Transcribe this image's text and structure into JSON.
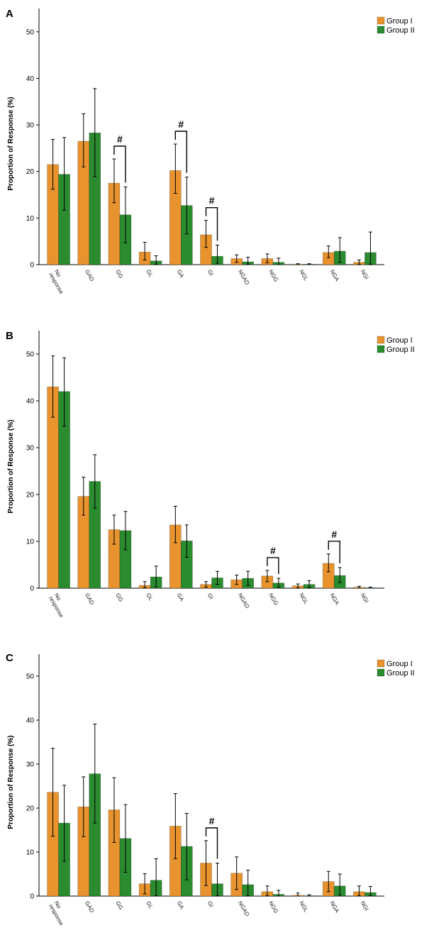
{
  "colors": {
    "group1": "#E8932E",
    "group2": "#2A8B2F",
    "axis": "#000000"
  },
  "chart_data": [
    {
      "panel": "A",
      "type": "bar",
      "ylabel": "Proportion of Response (%)",
      "ylim": [
        0,
        55
      ],
      "yticks": [
        "0",
        "10",
        "20",
        "30",
        "40",
        "50"
      ],
      "categories": [
        "No response",
        "GAD",
        "GG",
        "GL",
        "GA",
        "GI",
        "NGAD",
        "NGG",
        "NGL",
        "NGA",
        "NGI"
      ],
      "category_lines": [
        [
          "No",
          "response"
        ],
        [
          "GAD"
        ],
        [
          "GG"
        ],
        [
          "GL"
        ],
        [
          "GA"
        ],
        [
          "GI"
        ],
        [
          "NGAD"
        ],
        [
          "NGG"
        ],
        [
          "NGL"
        ],
        [
          "NGA"
        ],
        [
          "NGI"
        ]
      ],
      "legend": [
        "Group I",
        "Group II"
      ],
      "series": [
        {
          "name": "Group I",
          "values": [
            21.5,
            26.5,
            17.5,
            2.7,
            20.2,
            6.4,
            1.3,
            1.3,
            0.1,
            2.6,
            0.5
          ],
          "err_low": [
            16.2,
            21.0,
            13.3,
            1.0,
            15.3,
            3.7,
            0.5,
            0.4,
            0.0,
            1.5,
            0.1
          ],
          "err_high": [
            26.9,
            32.4,
            22.7,
            4.8,
            25.9,
            9.5,
            2.1,
            2.3,
            0.2,
            4.0,
            1.0
          ]
        },
        {
          "name": "Group II",
          "values": [
            19.4,
            28.3,
            10.7,
            0.8,
            12.7,
            1.8,
            0.6,
            0.5,
            0.1,
            2.9,
            2.6
          ],
          "err_low": [
            11.7,
            18.9,
            4.7,
            0.1,
            6.6,
            0.3,
            0.1,
            0.0,
            0.0,
            0.5,
            0.1
          ],
          "err_high": [
            27.3,
            37.8,
            16.7,
            1.9,
            18.8,
            4.2,
            1.6,
            1.4,
            0.2,
            5.8,
            7.0
          ]
        }
      ],
      "annotations": [
        {
          "label": "#",
          "category_index": 2
        },
        {
          "label": "#",
          "category_index": 4
        },
        {
          "label": "#",
          "category_index": 5
        }
      ]
    },
    {
      "panel": "B",
      "type": "bar",
      "ylabel": "Proportion of Response (%)",
      "ylim": [
        0,
        55
      ],
      "yticks": [
        "0",
        "10",
        "20",
        "30",
        "40",
        "50"
      ],
      "categories": [
        "No response",
        "GAD",
        "GG",
        "GL",
        "GA",
        "GI",
        "NGAD",
        "NGG",
        "NGL",
        "NGA",
        "NGI"
      ],
      "category_lines": [
        [
          "No",
          "response"
        ],
        [
          "GAD"
        ],
        [
          "GG"
        ],
        [
          "GL"
        ],
        [
          "GA"
        ],
        [
          "GI"
        ],
        [
          "NGAD"
        ],
        [
          "NGG"
        ],
        [
          "NGL"
        ],
        [
          "NGA"
        ],
        [
          "NGI"
        ]
      ],
      "legend": [
        "Group I",
        "Group II"
      ],
      "series": [
        {
          "name": "Group I",
          "values": [
            43.0,
            19.6,
            12.5,
            0.6,
            13.5,
            0.8,
            1.8,
            2.6,
            0.5,
            5.3,
            0.2
          ],
          "err_low": [
            36.5,
            15.6,
            9.4,
            0.1,
            9.7,
            0.2,
            0.8,
            1.4,
            0.1,
            3.5,
            0.0
          ],
          "err_high": [
            49.6,
            23.7,
            15.6,
            1.4,
            17.5,
            1.4,
            2.8,
            3.8,
            0.9,
            7.3,
            0.4
          ]
        },
        {
          "name": "Group II",
          "values": [
            42.0,
            22.8,
            12.3,
            2.4,
            10.1,
            2.2,
            2.1,
            1.1,
            0.8,
            2.7,
            0.1
          ],
          "err_low": [
            34.6,
            17.1,
            8.2,
            0.3,
            6.6,
            0.8,
            0.6,
            0.2,
            0.1,
            1.2,
            0.0
          ],
          "err_high": [
            49.2,
            28.5,
            16.4,
            4.7,
            13.5,
            3.6,
            3.6,
            2.1,
            1.6,
            4.4,
            0.2
          ]
        }
      ],
      "annotations": [
        {
          "label": "#",
          "category_index": 7
        },
        {
          "label": "#",
          "category_index": 9
        }
      ]
    },
    {
      "panel": "C",
      "type": "bar",
      "ylabel": "Proportion of Response (%)",
      "ylim": [
        0,
        55
      ],
      "yticks": [
        "0",
        "10",
        "20",
        "30",
        "40",
        "50"
      ],
      "categories": [
        "No response",
        "GAD",
        "GG",
        "GL",
        "GA",
        "GI",
        "NGAD",
        "NGG",
        "NGL",
        "NGA",
        "NGI"
      ],
      "category_lines": [
        [
          "No",
          "response"
        ],
        [
          "GAD"
        ],
        [
          "GG"
        ],
        [
          "GL"
        ],
        [
          "GA"
        ],
        [
          "GI"
        ],
        [
          "NGAD"
        ],
        [
          "NGG"
        ],
        [
          "NGL"
        ],
        [
          "NGA"
        ],
        [
          "NGI"
        ]
      ],
      "legend": [
        "Group I",
        "Group II"
      ],
      "series": [
        {
          "name": "Group I",
          "values": [
            23.6,
            20.3,
            19.6,
            2.8,
            15.9,
            7.5,
            5.2,
            1.0,
            0.2,
            3.3,
            1.0
          ],
          "err_low": [
            13.6,
            13.5,
            12.2,
            0.5,
            8.5,
            2.4,
            1.5,
            0.1,
            0.0,
            1.0,
            0.1
          ],
          "err_high": [
            33.6,
            27.1,
            26.9,
            5.1,
            23.3,
            12.6,
            8.9,
            2.3,
            0.7,
            5.6,
            2.3
          ]
        },
        {
          "name": "Group II",
          "values": [
            16.6,
            27.8,
            13.1,
            3.6,
            11.3,
            2.8,
            2.6,
            0.4,
            0.1,
            2.3,
            0.8
          ],
          "err_low": [
            7.9,
            16.6,
            5.4,
            0.1,
            3.7,
            0.1,
            0.1,
            0.0,
            0.0,
            0.2,
            0.1
          ],
          "err_high": [
            25.2,
            39.1,
            20.8,
            8.5,
            18.8,
            7.5,
            5.9,
            1.3,
            0.3,
            5.0,
            2.2
          ]
        }
      ],
      "annotations": [
        {
          "label": "#",
          "category_index": 5
        }
      ]
    }
  ]
}
